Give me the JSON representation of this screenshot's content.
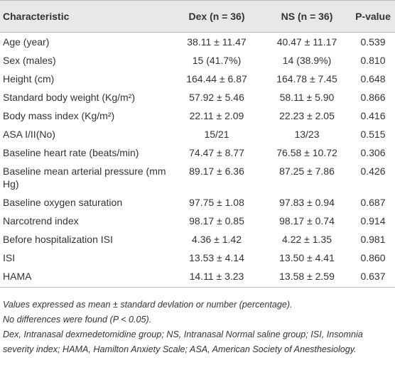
{
  "table": {
    "header": [
      "Characteristic",
      "Dex (n = 36)",
      "NS (n = 36)",
      "P-value"
    ],
    "rows": [
      [
        "Age (year)",
        "38.11 ± 11.47",
        "40.47 ± 11.17",
        "0.539"
      ],
      [
        "Sex (males)",
        "15 (41.7%)",
        "14 (38.9%)",
        "0.810"
      ],
      [
        "Height (cm)",
        "164.44 ± 6.87",
        "164.78 ± 7.45",
        "0.648"
      ],
      [
        "Standard body weight (Kg/m²)",
        "57.92 ± 5.46",
        "58.11 ± 5.90",
        "0.866"
      ],
      [
        "Body mass index (Kg/m²)",
        "22.11 ± 2.09",
        "22.23 ± 2.05",
        "0.416"
      ],
      [
        "ASA I/II(No)",
        "15/21",
        "13/23",
        "0.515"
      ],
      [
        "Baseline heart rate (beats/min)",
        "74.47 ± 8.77",
        "76.58 ± 10.72",
        "0.306"
      ],
      [
        "Baseline mean arterial pressure (mm Hg)",
        "89.17 ± 6.36",
        "87.25 ± 7.86",
        "0.426"
      ],
      [
        "Baseline oxygen saturation",
        "97.75 ± 1.08",
        "97.83 ± 0.94",
        "0.687"
      ],
      [
        "Narcotrend index",
        "98.17 ± 0.85",
        "98.17 ± 0.74",
        "0.914"
      ],
      [
        "Before hospitalization ISI",
        "4.36 ± 1.42",
        "4.22 ± 1.35",
        "0.981"
      ],
      [
        "ISI",
        "13.53 ± 4.14",
        "13.50 ± 4.41",
        "0.860"
      ],
      [
        "HAMA",
        "14.11 ± 3.23",
        "13.58 ± 2.59",
        "0.637"
      ]
    ]
  },
  "notes": [
    "Values expressed as mean ± standard devlation or number (percentage).",
    "No differences were found (P < 0.05).",
    "Dex, Intranasal dexmedetomidine group; NS, Intranasal Normal saline group; ISI, Insomnia severity index; HAMA, Hamilton Anxiety Scale; ASA, American Society of Anesthesiology."
  ]
}
